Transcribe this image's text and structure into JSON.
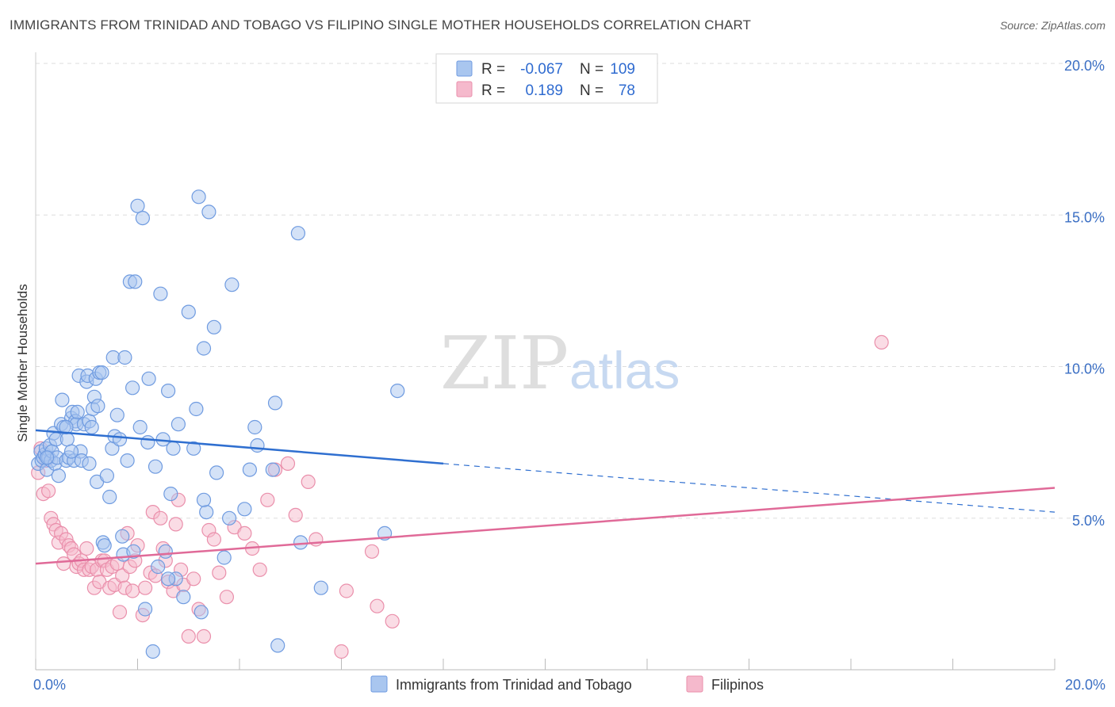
{
  "title": "IMMIGRANTS FROM TRINIDAD AND TOBAGO VS FILIPINO SINGLE MOTHER HOUSEHOLDS CORRELATION CHART",
  "source": "Source: ZipAtlas.com",
  "watermark": {
    "zip": "ZIP",
    "atlas": "atlas"
  },
  "colors": {
    "blue_fill": "#a9c6ef",
    "blue_stroke": "#6f9be0",
    "blue_line": "#2f6fd0",
    "pink_fill": "#f5b9cc",
    "pink_stroke": "#ea8fab",
    "pink_line": "#e06a98",
    "tick_label": "#3b6fc4",
    "grid": "#dddddd"
  },
  "legend": {
    "rows": [
      {
        "r_label": "R =",
        "r_value": "-0.067",
        "n_label": "N =",
        "n_value": "109"
      },
      {
        "r_label": "R =",
        "r_value": "0.189",
        "n_label": "N =",
        "n_value": "78"
      }
    ]
  },
  "chart_data": {
    "type": "scatter",
    "title": "IMMIGRANTS FROM TRINIDAD AND TOBAGO VS FILIPINO SINGLE MOTHER HOUSEHOLDS CORRELATION CHART",
    "xlabel": "",
    "ylabel": "Single Mother Households",
    "xlim": [
      0,
      20
    ],
    "ylim": [
      0,
      20
    ],
    "x_tick_labels": [
      "0.0%",
      "20.0%"
    ],
    "y_ticks": [
      5,
      10,
      15,
      20
    ],
    "y_tick_labels": [
      "5.0%",
      "10.0%",
      "15.0%",
      "20.0%"
    ],
    "grid": true,
    "legend_position": "top-center",
    "series": [
      {
        "name": "Immigrants from Trinidad and Tobago",
        "r": -0.067,
        "n": 109,
        "trend": {
          "x0": 0,
          "y0": 7.9,
          "x1": 8,
          "y1": 6.8,
          "x_dash_end": 20,
          "y_dash_end": 5.2
        },
        "points": [
          [
            0.05,
            6.8
          ],
          [
            0.1,
            7.2
          ],
          [
            0.12,
            6.9
          ],
          [
            0.15,
            7.0
          ],
          [
            0.18,
            7.1
          ],
          [
            0.2,
            7.3
          ],
          [
            0.22,
            6.6
          ],
          [
            0.25,
            7.0
          ],
          [
            0.28,
            7.4
          ],
          [
            0.3,
            6.9
          ],
          [
            0.32,
            7.2
          ],
          [
            0.35,
            7.8
          ],
          [
            0.38,
            6.8
          ],
          [
            0.4,
            7.6
          ],
          [
            0.42,
            7.0
          ],
          [
            0.45,
            6.4
          ],
          [
            0.5,
            8.1
          ],
          [
            0.52,
            8.9
          ],
          [
            0.55,
            8.0
          ],
          [
            0.6,
            6.9
          ],
          [
            0.62,
            7.6
          ],
          [
            0.65,
            7.0
          ],
          [
            0.7,
            8.3
          ],
          [
            0.72,
            8.5
          ],
          [
            0.75,
            6.9
          ],
          [
            0.78,
            8.2
          ],
          [
            0.8,
            8.1
          ],
          [
            0.82,
            8.5
          ],
          [
            0.85,
            9.7
          ],
          [
            0.88,
            7.2
          ],
          [
            0.9,
            6.9
          ],
          [
            0.95,
            8.1
          ],
          [
            1.0,
            9.5
          ],
          [
            1.02,
            9.7
          ],
          [
            1.05,
            8.2
          ],
          [
            1.1,
            8.0
          ],
          [
            1.12,
            8.6
          ],
          [
            1.15,
            9.0
          ],
          [
            1.18,
            9.6
          ],
          [
            1.2,
            6.2
          ],
          [
            1.22,
            8.7
          ],
          [
            1.25,
            9.8
          ],
          [
            1.3,
            9.8
          ],
          [
            1.32,
            4.2
          ],
          [
            1.35,
            4.1
          ],
          [
            1.4,
            6.4
          ],
          [
            1.45,
            5.7
          ],
          [
            1.5,
            7.3
          ],
          [
            1.52,
            10.3
          ],
          [
            1.55,
            7.7
          ],
          [
            1.6,
            8.4
          ],
          [
            1.65,
            7.6
          ],
          [
            1.7,
            4.4
          ],
          [
            1.72,
            3.8
          ],
          [
            1.75,
            10.3
          ],
          [
            1.8,
            6.9
          ],
          [
            1.85,
            12.8
          ],
          [
            1.9,
            9.3
          ],
          [
            1.92,
            3.9
          ],
          [
            1.95,
            12.8
          ],
          [
            2.0,
            15.3
          ],
          [
            2.05,
            8.0
          ],
          [
            2.1,
            14.9
          ],
          [
            2.15,
            2.0
          ],
          [
            2.2,
            7.5
          ],
          [
            2.22,
            9.6
          ],
          [
            2.3,
            0.6
          ],
          [
            2.35,
            6.7
          ],
          [
            2.4,
            3.4
          ],
          [
            2.45,
            12.4
          ],
          [
            2.5,
            7.6
          ],
          [
            2.55,
            3.9
          ],
          [
            2.6,
            9.2
          ],
          [
            2.65,
            5.8
          ],
          [
            2.7,
            7.3
          ],
          [
            2.75,
            3.0
          ],
          [
            2.8,
            8.1
          ],
          [
            2.9,
            2.4
          ],
          [
            3.0,
            11.8
          ],
          [
            3.1,
            7.3
          ],
          [
            3.15,
            8.6
          ],
          [
            3.2,
            15.6
          ],
          [
            3.25,
            1.9
          ],
          [
            3.3,
            10.6
          ],
          [
            3.35,
            5.2
          ],
          [
            3.4,
            15.1
          ],
          [
            3.5,
            11.3
          ],
          [
            3.55,
            6.5
          ],
          [
            3.7,
            3.7
          ],
          [
            3.8,
            5.0
          ],
          [
            3.85,
            12.7
          ],
          [
            4.1,
            5.3
          ],
          [
            4.2,
            6.6
          ],
          [
            4.3,
            8.0
          ],
          [
            4.35,
            7.4
          ],
          [
            4.65,
            6.6
          ],
          [
            4.7,
            8.8
          ],
          [
            4.75,
            0.8
          ],
          [
            5.15,
            14.4
          ],
          [
            5.2,
            4.2
          ],
          [
            5.6,
            2.7
          ],
          [
            6.85,
            4.5
          ],
          [
            7.1,
            9.2
          ],
          [
            0.6,
            8.0
          ],
          [
            0.7,
            7.2
          ],
          [
            1.05,
            6.8
          ],
          [
            2.6,
            3.0
          ],
          [
            3.3,
            5.6
          ],
          [
            0.22,
            7.0
          ]
        ]
      },
      {
        "name": "Filipinos",
        "r": 0.189,
        "n": 78,
        "trend": {
          "x0": 0,
          "y0": 3.5,
          "x1": 20,
          "y1": 6.0
        },
        "points": [
          [
            0.05,
            6.5
          ],
          [
            0.1,
            7.3
          ],
          [
            0.15,
            5.8
          ],
          [
            0.2,
            6.9
          ],
          [
            0.25,
            5.9
          ],
          [
            0.3,
            5.0
          ],
          [
            0.35,
            4.8
          ],
          [
            0.4,
            4.6
          ],
          [
            0.45,
            4.2
          ],
          [
            0.5,
            4.5
          ],
          [
            0.55,
            3.5
          ],
          [
            0.6,
            4.3
          ],
          [
            0.65,
            4.1
          ],
          [
            0.7,
            4.0
          ],
          [
            0.75,
            3.8
          ],
          [
            0.8,
            3.4
          ],
          [
            0.85,
            3.5
          ],
          [
            0.9,
            3.6
          ],
          [
            0.95,
            3.3
          ],
          [
            1.0,
            4.0
          ],
          [
            1.05,
            3.3
          ],
          [
            1.1,
            3.4
          ],
          [
            1.15,
            2.7
          ],
          [
            1.2,
            3.3
          ],
          [
            1.25,
            2.9
          ],
          [
            1.3,
            3.6
          ],
          [
            1.35,
            3.6
          ],
          [
            1.4,
            3.3
          ],
          [
            1.45,
            2.7
          ],
          [
            1.5,
            3.4
          ],
          [
            1.55,
            2.8
          ],
          [
            1.6,
            3.5
          ],
          [
            1.65,
            1.9
          ],
          [
            1.7,
            3.1
          ],
          [
            1.75,
            2.7
          ],
          [
            1.8,
            4.5
          ],
          [
            1.85,
            3.4
          ],
          [
            1.9,
            2.6
          ],
          [
            1.95,
            3.6
          ],
          [
            2.0,
            4.1
          ],
          [
            2.1,
            1.8
          ],
          [
            2.15,
            2.7
          ],
          [
            2.25,
            3.2
          ],
          [
            2.3,
            5.2
          ],
          [
            2.35,
            3.1
          ],
          [
            2.45,
            5.0
          ],
          [
            2.5,
            4.0
          ],
          [
            2.55,
            3.6
          ],
          [
            2.6,
            2.9
          ],
          [
            2.7,
            2.6
          ],
          [
            2.75,
            4.8
          ],
          [
            2.8,
            5.6
          ],
          [
            2.85,
            3.3
          ],
          [
            2.9,
            2.8
          ],
          [
            3.0,
            1.1
          ],
          [
            3.1,
            3.0
          ],
          [
            3.2,
            2.0
          ],
          [
            3.3,
            1.1
          ],
          [
            3.4,
            4.6
          ],
          [
            3.5,
            4.3
          ],
          [
            3.6,
            3.2
          ],
          [
            3.75,
            2.4
          ],
          [
            3.9,
            4.7
          ],
          [
            4.1,
            4.5
          ],
          [
            4.25,
            4.0
          ],
          [
            4.4,
            3.3
          ],
          [
            4.55,
            5.6
          ],
          [
            4.7,
            6.6
          ],
          [
            4.95,
            6.8
          ],
          [
            5.1,
            5.1
          ],
          [
            5.35,
            6.2
          ],
          [
            5.5,
            4.3
          ],
          [
            6.0,
            0.6
          ],
          [
            6.1,
            2.6
          ],
          [
            6.6,
            3.9
          ],
          [
            6.7,
            2.1
          ],
          [
            7.0,
            1.6
          ],
          [
            16.6,
            10.8
          ]
        ]
      }
    ]
  },
  "bottom_legend": [
    {
      "label": "Immigrants from Trinidad and Tobago"
    },
    {
      "label": "Filipinos"
    }
  ]
}
